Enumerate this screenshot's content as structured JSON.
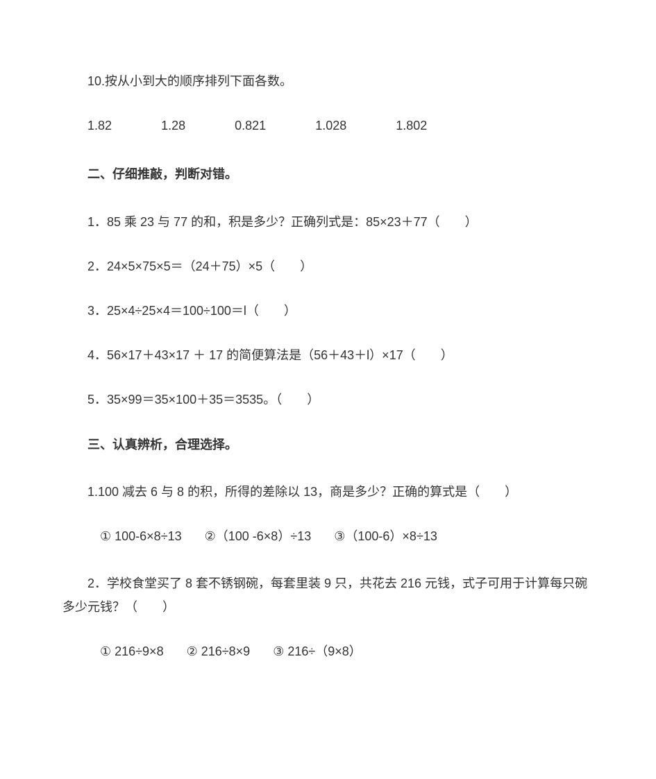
{
  "doc": {
    "background_color": "#ffffff",
    "text_color": "#333333",
    "font_family": "Microsoft YaHei",
    "font_size_pt": 14,
    "line_height": 1.9
  },
  "q10": {
    "prompt": "10.按从小到大的顺序排列下面各数。",
    "numbers": [
      "1.82",
      "1.28",
      "0.821",
      "1.028",
      "1.802"
    ]
  },
  "section2": {
    "title": "二、仔细推敲，判断对错。",
    "items": [
      "1．85 乘 23 与 77 的和，积是多少？正确列式是：85×23＋77（　　）",
      "2．24×5×75×5＝（24＋75）×5（　　）",
      "3．25×4÷25×4＝100÷100＝l（　　）",
      "4．56×17＋43×17 ＋ 17 的简便算法是（56＋43＋l）×17（　　）",
      "5．35×99＝35×100＋35＝3535。（　　）"
    ]
  },
  "section3": {
    "title": "三、认真辨析，合理选择。",
    "q1": {
      "text": "1.100 减去 6 与 8 的积，所得的差除以 13，商是多少？正确的算式是（　　）",
      "opts": [
        "① 100-6×8÷13",
        "②（100 -6×8）÷13",
        "③（100-6）×8÷13"
      ]
    },
    "q2": {
      "line1": "2．学校食堂买了 8 套不锈钢碗，每套里装 9 只，共花去 216 元钱，式子可用于计算每只碗",
      "line2": "多少元钱？（　　）",
      "opts": [
        "① 216÷9×8",
        "② 216÷8×9",
        "③ 216÷（9×8）"
      ]
    }
  }
}
